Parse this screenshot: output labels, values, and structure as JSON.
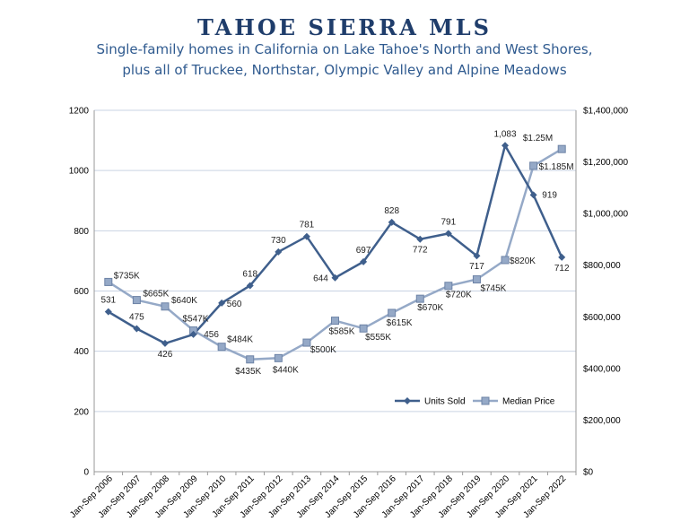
{
  "header": {
    "title": "TAHOE SIERRA MLS",
    "subtitle_line1": "Single-family homes in California on Lake Tahoe's North and West Shores,",
    "subtitle_line2": "plus all of Truckee, Northstar, Olympic Valley and Alpine Meadows"
  },
  "colors": {
    "units": "#3f5f8c",
    "price": "#95a9c7",
    "grid": "#c9d3e3"
  },
  "chart_data": {
    "type": "line",
    "categories": [
      "Jan-Sep 2006",
      "Jan-Sep 2007",
      "Jan-Sep 2008",
      "Jan-Sep 2009",
      "Jan-Sep 2010",
      "Jan-Sep 2011",
      "Jan-Sep 2012",
      "Jan-Sep 2013",
      "Jan-Sep 2014",
      "Jan-Sep 2015",
      "Jan-Sep 2016",
      "Jan-Sep 2017",
      "Jan-Sep 2018",
      "Jan-Sep 2019",
      "Jan-Sep 2020",
      "Jan-Sep 2021",
      "Jan-Sep 2022"
    ],
    "y_left": {
      "min": 0,
      "max": 1200,
      "ticks": [
        "0",
        "200",
        "400",
        "600",
        "800",
        "1000",
        "1200"
      ]
    },
    "y_right": {
      "min": 0,
      "max": 1400000,
      "ticks": [
        "$0",
        "$200,000",
        "$400,000",
        "$600,000",
        "$800,000",
        "$1,000,000",
        "$1,200,000",
        "$1,400,000"
      ]
    },
    "grid": true,
    "legend_position": "lower-right inside",
    "series": [
      {
        "name": "Units Sold",
        "axis": "left",
        "values": [
          531,
          475,
          426,
          456,
          560,
          618,
          730,
          781,
          644,
          697,
          828,
          772,
          791,
          717,
          1083,
          919,
          712
        ],
        "labels": [
          "531",
          "475",
          "426",
          "456",
          "560",
          "618",
          "730",
          "781",
          "644",
          "697",
          "828",
          "772",
          "791",
          "717",
          "1,083",
          "919",
          "712"
        ]
      },
      {
        "name": "Median Price",
        "axis": "right",
        "values": [
          735000,
          665000,
          640000,
          547000,
          484000,
          435000,
          440000,
          500000,
          585000,
          555000,
          615000,
          670000,
          720000,
          745000,
          820000,
          1185000,
          1250000
        ],
        "labels": [
          "$735K",
          "$665K",
          "$640K",
          "$547K",
          "$484K",
          "$435K",
          "$440K",
          "$500K",
          "$585K",
          "$555K",
          "$615K",
          "$670K",
          "$720K",
          "$745K",
          "$820K",
          "$1.185M",
          "$1.25M"
        ]
      }
    ]
  }
}
